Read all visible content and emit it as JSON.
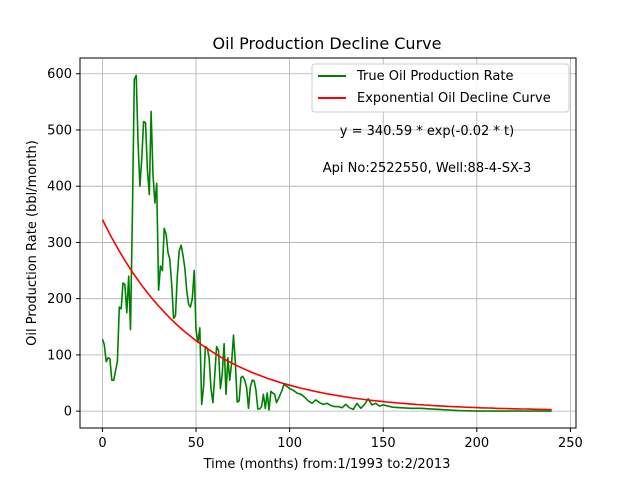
{
  "chart_data": {
    "type": "line",
    "title": "Oil Production Decline Curve",
    "xlabel": "Time (months) from:1/1993 to:2/2013",
    "ylabel": "Oil Production Rate (bbl/month)",
    "xlim": [
      -12,
      253
    ],
    "ylim": [
      -30,
      628
    ],
    "xticks": [
      0,
      50,
      100,
      150,
      200,
      250
    ],
    "yticks": [
      0,
      100,
      200,
      300,
      400,
      500,
      600
    ],
    "grid": true,
    "legend_position": "upper-right",
    "annotations": [
      "y = 340.59 * exp(-0.02 * t)",
      "Api No:2522550, Well:88-4-SX-3"
    ],
    "series": [
      {
        "name": "True Oil Production Rate",
        "color": "#008000",
        "x": [
          0,
          1,
          2,
          3,
          4,
          5,
          6,
          7,
          8,
          9,
          10,
          11,
          12,
          13,
          14,
          15,
          16,
          17,
          18,
          19,
          20,
          21,
          22,
          23,
          24,
          25,
          26,
          27,
          28,
          29,
          30,
          31,
          32,
          33,
          34,
          35,
          36,
          37,
          38,
          39,
          40,
          41,
          42,
          43,
          44,
          45,
          46,
          47,
          48,
          49,
          50,
          51,
          52,
          53,
          54,
          55,
          56,
          57,
          58,
          59,
          60,
          61,
          62,
          63,
          64,
          65,
          66,
          67,
          68,
          69,
          70,
          71,
          72,
          73,
          74,
          75,
          76,
          77,
          78,
          79,
          80,
          81,
          82,
          83,
          84,
          85,
          86,
          87,
          88,
          89,
          90,
          91,
          92,
          93,
          94,
          95,
          96,
          97,
          98,
          99,
          100,
          102,
          104,
          106,
          108,
          110,
          112,
          114,
          116,
          118,
          120,
          122,
          124,
          126,
          128,
          130,
          132,
          134,
          136,
          138,
          140,
          142,
          144,
          146,
          148,
          150,
          155,
          160,
          165,
          170,
          175,
          180,
          185,
          190,
          200,
          210,
          220,
          230,
          240
        ],
        "values": [
          128,
          118,
          88,
          95,
          93,
          55,
          55,
          72,
          88,
          185,
          182,
          228,
          225,
          175,
          240,
          145,
          350,
          590,
          597,
          480,
          400,
          450,
          515,
          513,
          430,
          385,
          533,
          420,
          370,
          405,
          215,
          258,
          250,
          325,
          315,
          282,
          270,
          225,
          165,
          170,
          240,
          285,
          295,
          278,
          255,
          215,
          190,
          185,
          200,
          250,
          145,
          122,
          148,
          12,
          42,
          115,
          112,
          95,
          40,
          15,
          65,
          115,
          108,
          40,
          65,
          120,
          30,
          95,
          55,
          85,
          135,
          85,
          16,
          18,
          60,
          62,
          55,
          42,
          5,
          42,
          55,
          54,
          38,
          4,
          4,
          8,
          30,
          5,
          32,
          2,
          35,
          32,
          30,
          15,
          22,
          30,
          37,
          48,
          45,
          43,
          40,
          37,
          32,
          30,
          25,
          18,
          14,
          20,
          15,
          12,
          14,
          10,
          8,
          8,
          6,
          12,
          6,
          3,
          14,
          5,
          12,
          22,
          11,
          14,
          9,
          11,
          7,
          6,
          5,
          5,
          4,
          3,
          2,
          1,
          0,
          0,
          0,
          0,
          0
        ]
      },
      {
        "name": "Exponential Oil Decline Curve",
        "color": "#ff0000",
        "a": 340.59,
        "b": -0.02,
        "x_range": [
          0,
          240
        ]
      }
    ]
  }
}
